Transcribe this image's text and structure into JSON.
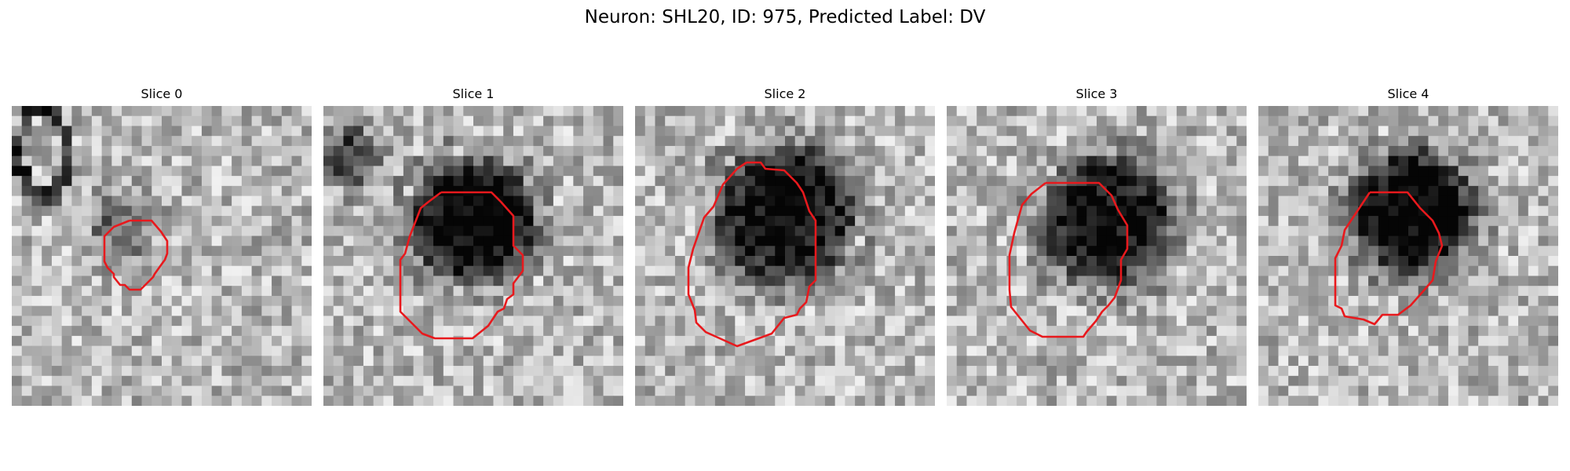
{
  "figure": {
    "title": "Neuron: SHL20, ID: 975, Predicted Label: DV",
    "contour_color": "#e8191d",
    "colormap": "gray"
  },
  "slices": [
    {
      "title": "Slice 0",
      "icon": "neuron-slice-image",
      "seed": 11,
      "roi": {
        "type": "contour",
        "features": [
          "upper-left dark oval outline",
          "faint small cell"
        ]
      }
    },
    {
      "title": "Slice 1",
      "icon": "neuron-slice-image",
      "seed": 23,
      "roi": {
        "type": "contour",
        "features": [
          "upper-left dark blob",
          "large dark cell"
        ]
      }
    },
    {
      "title": "Slice 2",
      "icon": "neuron-slice-image",
      "seed": 37,
      "roi": {
        "type": "contour",
        "features": [
          "large dark cell"
        ]
      }
    },
    {
      "title": "Slice 3",
      "icon": "neuron-slice-image",
      "seed": 41,
      "roi": {
        "type": "contour",
        "features": [
          "large dark cell"
        ]
      }
    },
    {
      "title": "Slice 4",
      "icon": "neuron-slice-image",
      "seed": 53,
      "roi": {
        "type": "contour",
        "features": [
          "dark cell upper right"
        ]
      }
    }
  ]
}
